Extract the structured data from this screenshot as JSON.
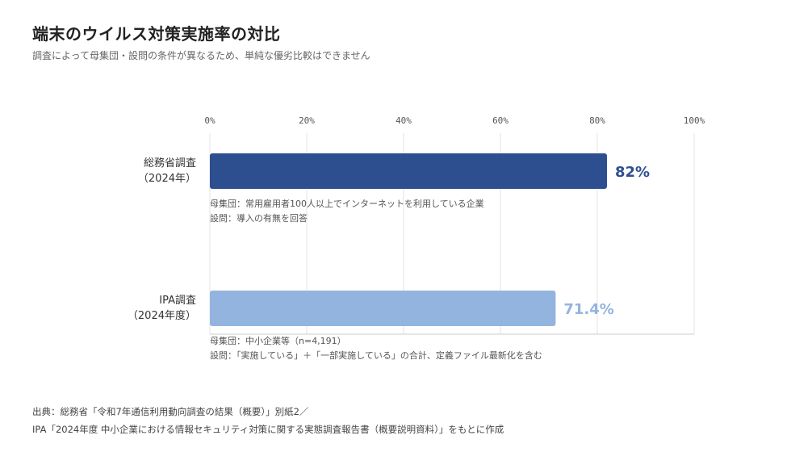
{
  "title": "端末のウイルス対策実施率の対比",
  "subtitle": "調査によって母集団・設問の条件が異なるため、単純な優劣比較はできません",
  "chart_data": {
    "type": "bar",
    "orientation": "horizontal",
    "xlim": [
      0,
      100
    ],
    "x_ticks": [
      "0%",
      "20%",
      "40%",
      "60%",
      "80%",
      "100%"
    ],
    "grid": true,
    "categories": [
      {
        "line1": "総務省調査",
        "line2": "（2024年）",
        "value": 82,
        "value_label": "82%",
        "color": "#2e4f8f",
        "label_color": "#2e4f8f",
        "note1": "母集団：常用雇用者100人以上でインターネットを利用している企業",
        "note2": "設問：導入の有無を回答"
      },
      {
        "line1": "IPA調査",
        "line2": "（2024年度）",
        "value": 71.4,
        "value_label": "71.4%",
        "color": "#93b4df",
        "label_color": "#93b4df",
        "note1": "母集団：中小企業等（n=4,191）",
        "note2": "設問：「実施している」＋「一部実施している」の合計、定義ファイル最新化を含む"
      }
    ]
  },
  "source": {
    "line1": "出典：総務省「令和7年通信利用動向調査の結果（概要）」別紙2／",
    "line2": "IPA「2024年度 中小企業における情報セキュリティ対策に関する実態調査報告書（概要説明資料）」をもとに作成"
  }
}
